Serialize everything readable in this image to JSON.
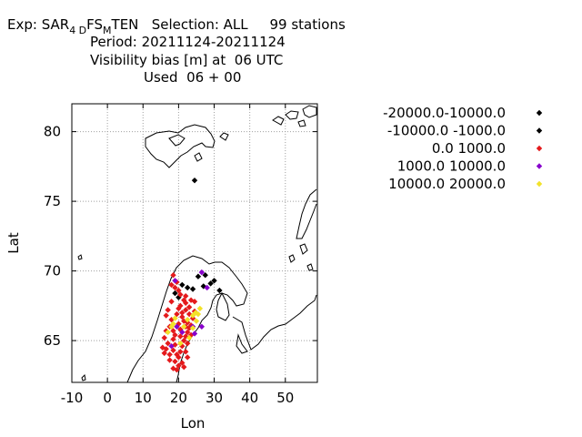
{
  "header": {
    "line1": {
      "prefix": "Exp: SAR",
      "sub1": "4 D",
      "mid": "FS",
      "sub2": "M",
      "suffix": "TEN   Selection: ALL     99 stations"
    },
    "line2": "Period: 20211124-20211124",
    "line3": "Visibility bias [m] at  06 UTC",
    "line4": "Used  06 + 00"
  },
  "chart_data": {
    "type": "scatter",
    "title": "Visibility bias [m] at  06 UTC",
    "xlabel": "Lon",
    "ylabel": "Lat",
    "xlim": [
      -10,
      59
    ],
    "ylim": [
      62,
      82
    ],
    "xticks": [
      -10,
      0,
      10,
      20,
      30,
      40,
      50
    ],
    "yticks": [
      65,
      70,
      75,
      80
    ],
    "grid": true,
    "legend_position": "right",
    "series": [
      {
        "name": "-20000.0-10000.0",
        "color": "#000000",
        "points": []
      },
      {
        "name": "-10000.0 -1000.0",
        "color": "#000000",
        "points": [
          [
            24.5,
            76.5
          ],
          [
            21,
            69.0
          ],
          [
            22.5,
            68.8
          ],
          [
            24,
            68.7
          ],
          [
            25.5,
            69.6
          ],
          [
            27.5,
            69.7
          ],
          [
            29,
            69.1
          ],
          [
            30,
            69.3
          ],
          [
            31.5,
            68.6
          ],
          [
            19,
            68.4
          ],
          [
            20,
            68.1
          ],
          [
            27,
            68.9
          ]
        ]
      },
      {
        "name": "0.0 1000.0",
        "color": "#e41a1c",
        "points": [
          [
            18.5,
            69.7
          ],
          [
            19.5,
            69.2
          ],
          [
            18,
            69.0
          ],
          [
            19,
            68.8
          ],
          [
            20,
            68.6
          ],
          [
            23.5,
            67.9
          ],
          [
            22,
            67.7
          ],
          [
            20.5,
            67.5
          ],
          [
            21,
            67.0
          ],
          [
            22,
            67.2
          ],
          [
            23,
            66.9
          ],
          [
            24,
            66.6
          ],
          [
            21.5,
            66.4
          ],
          [
            20,
            66.2
          ],
          [
            20.5,
            65.8
          ],
          [
            22.5,
            65.6
          ],
          [
            23,
            65.9
          ],
          [
            18,
            66.5
          ],
          [
            17.5,
            66.0
          ],
          [
            16.5,
            65.7
          ],
          [
            19,
            65.4
          ],
          [
            18.5,
            65.1
          ],
          [
            17,
            64.8
          ],
          [
            16.5,
            64.4
          ],
          [
            16,
            64.1
          ],
          [
            17.5,
            64.0
          ],
          [
            18.5,
            64.3
          ],
          [
            19.5,
            64.0
          ],
          [
            20.5,
            64.2
          ],
          [
            21,
            64.6
          ],
          [
            21.5,
            65.0
          ],
          [
            22,
            65.3
          ],
          [
            20,
            63.8
          ],
          [
            19,
            63.5
          ],
          [
            20,
            63.2
          ],
          [
            18.5,
            63.0
          ],
          [
            19.5,
            62.9
          ],
          [
            21,
            63.4
          ],
          [
            22,
            66.0
          ],
          [
            21,
            66.7
          ],
          [
            16.5,
            66.8
          ],
          [
            24.5,
            67.1
          ],
          [
            17,
            67.2
          ],
          [
            23.5,
            65.4
          ],
          [
            22.5,
            64.8
          ],
          [
            20.5,
            68.3
          ],
          [
            21.5,
            67.9
          ],
          [
            24.5,
            67.8
          ],
          [
            22,
            64.2
          ],
          [
            16,
            65.2
          ],
          [
            18,
            67.8
          ],
          [
            19.5,
            66.9
          ],
          [
            23,
            67.4
          ],
          [
            17.5,
            63.6
          ],
          [
            18.5,
            65.7
          ],
          [
            22.5,
            63.8
          ],
          [
            15.5,
            64.5
          ],
          [
            19,
            64.7
          ],
          [
            20.5,
            65.3
          ],
          [
            22.5,
            66.3
          ],
          [
            23.5,
            66.1
          ],
          [
            21.5,
            63.1
          ],
          [
            20,
            67.3
          ],
          [
            22,
            68.2
          ]
        ]
      },
      {
        "name": "1000.0 10000.0",
        "color": "#8800cc",
        "points": [
          [
            19,
            69.3
          ],
          [
            26.5,
            69.9
          ],
          [
            28,
            68.8
          ],
          [
            19.5,
            66.0
          ],
          [
            24,
            66.0
          ],
          [
            26.5,
            66.0
          ],
          [
            21,
            65.6
          ],
          [
            24.5,
            65.5
          ],
          [
            18,
            64.6
          ]
        ]
      },
      {
        "name": "10000.0 20000.0",
        "color": "#f2e229",
        "points": [
          [
            19,
            66.6
          ],
          [
            21.5,
            66.0
          ],
          [
            24,
            66.8
          ],
          [
            25,
            66.4
          ],
          [
            18,
            66.0
          ],
          [
            26,
            67.3
          ],
          [
            24.8,
            67.0
          ],
          [
            22.5,
            66.5
          ],
          [
            20.5,
            64.8
          ],
          [
            23,
            65.2
          ],
          [
            18.5,
            66.2
          ],
          [
            24,
            65.9
          ],
          [
            25.5,
            66.9
          ],
          [
            17,
            65.6
          ]
        ]
      }
    ]
  }
}
